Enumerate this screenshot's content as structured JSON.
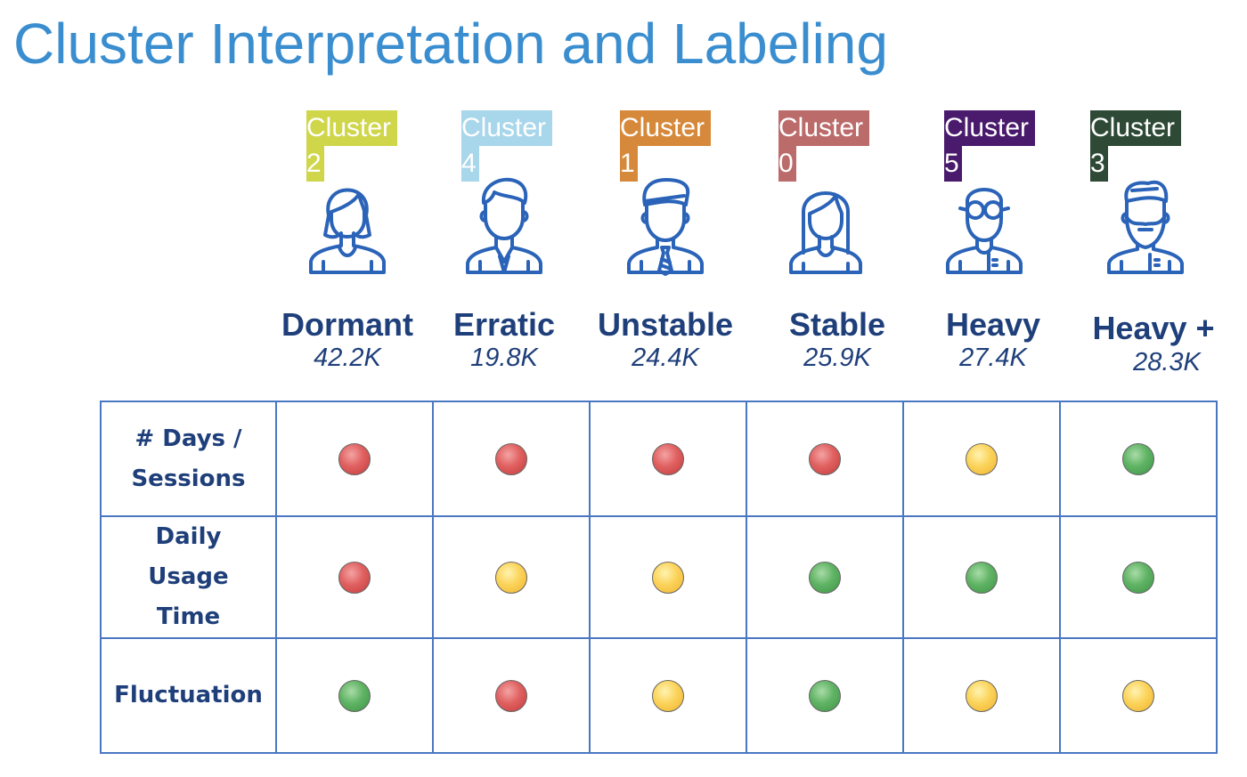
{
  "title": "Cluster Interpretation and Labeling",
  "clusters": [
    {
      "tag_word": "Cluster",
      "tag_num": "2",
      "tag_color": "#cfd64a",
      "label": "Dormant",
      "count": "42.2K",
      "avatar_icon": "woman-short-hair-icon"
    },
    {
      "tag_word": "Cluster",
      "tag_num": "4",
      "tag_color": "#a8d6ea",
      "label": "Erratic",
      "count": "19.8K",
      "avatar_icon": "man-quiff-icon"
    },
    {
      "tag_word": "Cluster",
      "tag_num": "1",
      "tag_color": "#d6893a",
      "label": "Unstable",
      "count": "24.4K",
      "avatar_icon": "businessman-tie-icon"
    },
    {
      "tag_word": "Cluster",
      "tag_num": "0",
      "tag_color": "#bc6b6b",
      "label": "Stable",
      "count": "25.9K",
      "avatar_icon": "woman-long-hair-icon"
    },
    {
      "tag_word": "Cluster",
      "tag_num": "5",
      "tag_color": "#4a1a6c",
      "label": "Heavy",
      "count": "27.4K",
      "avatar_icon": "man-glasses-icon"
    },
    {
      "tag_word": "Cluster",
      "tag_num": "3",
      "tag_color": "#2e4a36",
      "label": "Heavy +",
      "count": "28.3K",
      "avatar_icon": "man-beard-icon"
    }
  ],
  "rows": [
    {
      "label_lines": [
        "# Days /",
        "Sessions"
      ],
      "ratings": [
        "red",
        "red",
        "red",
        "red",
        "yellow",
        "green"
      ]
    },
    {
      "label_lines": [
        "Daily",
        "Usage",
        "Time"
      ],
      "ratings": [
        "red",
        "yellow",
        "yellow",
        "green",
        "green",
        "green"
      ]
    },
    {
      "label_lines": [
        "Fluctuation"
      ],
      "ratings": [
        "green",
        "red",
        "yellow",
        "green",
        "yellow",
        "yellow"
      ]
    }
  ],
  "rating_colors": {
    "red": "#e06060",
    "yellow": "#fbd35a",
    "green": "#5fb364"
  },
  "icon_color": "#2a63b8"
}
